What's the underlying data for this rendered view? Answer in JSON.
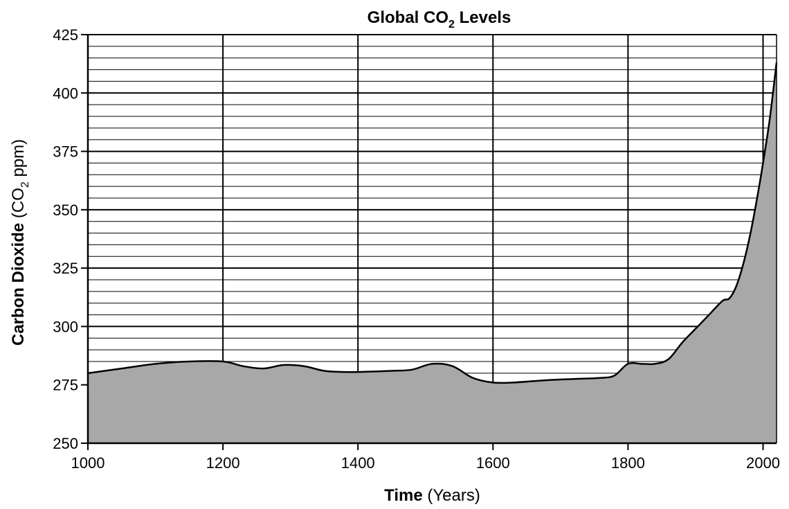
{
  "chart_data": {
    "type": "area",
    "title": {
      "prefix": "Global CO",
      "subscript": "2",
      "suffix": " Levels"
    },
    "xlabel": {
      "bold": "Time",
      "normal": " (Years)"
    },
    "ylabel": {
      "bold": "Carbon Dioxide",
      "normal_prefix": " (CO",
      "subscript": "2",
      "normal_suffix": " ppm)"
    },
    "xlim": [
      1000,
      2020
    ],
    "ylim": [
      250,
      425
    ],
    "x_ticks": [
      1000,
      1200,
      1400,
      1600,
      1800,
      2000
    ],
    "y_ticks": [
      250,
      275,
      300,
      325,
      350,
      375,
      400,
      425
    ],
    "x_tick_labels": [
      "1000",
      "1200",
      "1400",
      "1600",
      "1800",
      "2000"
    ],
    "y_tick_labels": [
      "250",
      "275",
      "300",
      "325",
      "350",
      "375",
      "400",
      "425"
    ],
    "grid": {
      "vertical": true,
      "horizontal_major": true,
      "horizontal_minor_step": 5
    },
    "fill_color": "#a8a8a8",
    "line_color": "#000000",
    "series": [
      {
        "x": [
          1000,
          1050,
          1100,
          1150,
          1200,
          1230,
          1260,
          1290,
          1320,
          1350,
          1380,
          1400,
          1450,
          1480,
          1510,
          1540,
          1570,
          1600,
          1630,
          1680,
          1720,
          1760,
          1780,
          1800,
          1820,
          1840,
          1860,
          1880,
          1900,
          1920,
          1940,
          1950,
          1960,
          1970,
          1980,
          1990,
          2000,
          2010,
          2020
        ],
        "values": [
          280,
          282,
          284,
          285,
          285,
          283,
          282,
          283.5,
          283,
          281,
          280.5,
          280.5,
          281,
          281.5,
          284,
          283,
          278,
          276,
          276,
          277,
          277.5,
          278,
          279,
          284,
          284,
          284,
          286,
          293,
          299,
          305,
          311,
          312,
          317,
          326,
          338,
          353,
          370,
          389,
          413
        ]
      }
    ]
  }
}
